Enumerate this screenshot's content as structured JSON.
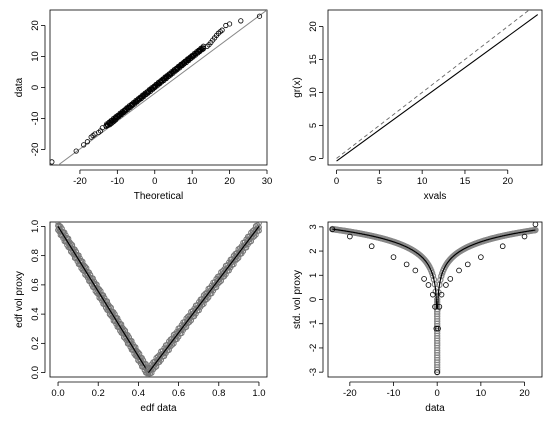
{
  "chart_data": [
    {
      "type": "scatter",
      "panel": "qq-plot",
      "xlabel": "Theoretical",
      "ylabel": "data",
      "xlim": [
        -28,
        30
      ],
      "ylim": [
        -25,
        25
      ],
      "xticks": [
        -20,
        -10,
        0,
        10,
        20,
        30
      ],
      "yticks": [
        -20,
        -10,
        0,
        10,
        20
      ],
      "reference_line": {
        "x": [
          -28,
          30
        ],
        "y": [
          -27,
          25
        ]
      },
      "points": {
        "x": [
          -27.5,
          -21,
          -19,
          -18,
          -17,
          -16.5,
          -16,
          -15,
          -14.5,
          -14,
          -13,
          -12,
          -11.5,
          -11,
          -10.5,
          -10,
          -9.5,
          -9,
          -8.5,
          -8,
          -7,
          -6,
          -5,
          -4,
          -3,
          -2,
          -1,
          0,
          1,
          2,
          3,
          4,
          5,
          6,
          7,
          8,
          9,
          10,
          11,
          12,
          13,
          14,
          14.5,
          15,
          15.5,
          16,
          16.5,
          17,
          17.5,
          18,
          19,
          20,
          23,
          28
        ],
        "y": [
          -24,
          -20.5,
          -18.5,
          -17.5,
          -16,
          -15.5,
          -15,
          -14.5,
          -14,
          -13,
          -12.5,
          -12,
          -11.5,
          -11,
          -10.5,
          -9.5,
          -9,
          -8.5,
          -8,
          -7.5,
          -6.5,
          -5.5,
          -4.5,
          -3.5,
          -2.5,
          -1.5,
          -0.5,
          0.3,
          1.3,
          2.3,
          3.3,
          4.3,
          5.3,
          6.3,
          7.3,
          8.3,
          9.3,
          10,
          11,
          12,
          12.5,
          13.3,
          13.8,
          14.5,
          15.3,
          16,
          16.8,
          17.5,
          18,
          18.5,
          20,
          20.5,
          21.5,
          23
        ]
      }
    },
    {
      "type": "line",
      "panel": "gr-plot",
      "xlabel": "xvals",
      "ylabel": "gr(x)",
      "xlim": [
        -1,
        24
      ],
      "ylim": [
        -1,
        22.5
      ],
      "xticks": [
        0,
        5,
        10,
        15,
        20
      ],
      "yticks": [
        0,
        5,
        10,
        15,
        20
      ],
      "series": [
        {
          "style": "solid",
          "x": [
            0,
            23.5
          ],
          "y": [
            -0.4,
            21.8
          ]
        },
        {
          "style": "dashed",
          "x": [
            0,
            23.5
          ],
          "y": [
            0,
            23.5
          ]
        }
      ]
    },
    {
      "type": "scatter",
      "panel": "edf-plot",
      "xlabel": "edf data",
      "ylabel": "edf vol proxy",
      "xlim": [
        -0.04,
        1.04
      ],
      "ylim": [
        -0.03,
        1.03
      ],
      "xticks": [
        0.0,
        0.2,
        0.4,
        0.6,
        0.8,
        1.0
      ],
      "yticks": [
        0.0,
        0.2,
        0.4,
        0.6,
        0.8,
        1.0
      ],
      "vertex": {
        "x": 0.45,
        "y": 0.0
      },
      "left_arm": {
        "x": [
          0.0,
          0.45
        ],
        "y": [
          1.0,
          0.0
        ]
      },
      "right_arm": {
        "x": [
          0.45,
          1.0
        ],
        "y": [
          0.0,
          1.0
        ]
      }
    },
    {
      "type": "scatter",
      "panel": "std-vol-plot",
      "xlabel": "data",
      "ylabel": "std. vol proxy",
      "xlim": [
        -25,
        24
      ],
      "ylim": [
        -3.2,
        3.2
      ],
      "xticks": [
        -20,
        -10,
        0,
        10,
        20
      ],
      "yticks": [
        -3,
        -2,
        -1,
        0,
        1,
        2,
        3
      ],
      "points": {
        "x": [
          -24,
          -20,
          -15,
          -10,
          -7,
          -5,
          -3,
          -2,
          -1,
          -0.5,
          -0.2,
          0,
          0.2,
          0.5,
          1,
          2,
          3,
          5,
          7,
          10,
          15,
          20,
          22.5
        ],
        "y": [
          2.9,
          2.6,
          2.2,
          1.75,
          1.45,
          1.2,
          0.85,
          0.6,
          0.2,
          -0.3,
          -1.2,
          -3.0,
          -1.2,
          -0.3,
          0.2,
          0.6,
          0.85,
          1.2,
          1.45,
          1.75,
          2.2,
          2.6,
          3.1
        ]
      }
    }
  ]
}
